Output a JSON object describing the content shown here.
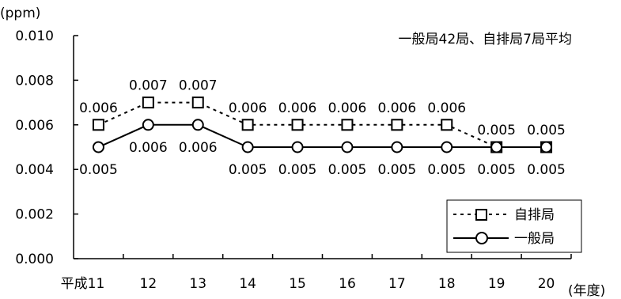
{
  "chart_data": {
    "type": "line",
    "unit_label": "(ppm)",
    "annotation": "一般局42局、自排局7局平均",
    "x_unit_label": "(年度)",
    "categories": [
      "平成11",
      "12",
      "13",
      "14",
      "15",
      "16",
      "17",
      "18",
      "19",
      "20"
    ],
    "ylim": [
      0,
      0.01
    ],
    "yticks": [
      "0.000",
      "0.002",
      "0.004",
      "0.006",
      "0.008",
      "0.010"
    ],
    "ytick_values": [
      0,
      0.002,
      0.004,
      0.006,
      0.008,
      0.01
    ],
    "legend_position": "bottom-right",
    "series": [
      {
        "name": "自排局",
        "marker": "square",
        "line_style": "dotted",
        "values": [
          0.006,
          0.007,
          0.007,
          0.006,
          0.006,
          0.006,
          0.006,
          0.006,
          0.005,
          0.005
        ],
        "labels": [
          "0.006",
          "0.007",
          "0.007",
          "0.006",
          "0.006",
          "0.006",
          "0.006",
          "0.006",
          "0.005",
          "0.005"
        ]
      },
      {
        "name": "一般局",
        "marker": "circle",
        "line_style": "solid",
        "values": [
          0.005,
          0.006,
          0.006,
          0.005,
          0.005,
          0.005,
          0.005,
          0.005,
          0.005,
          0.005
        ],
        "labels": [
          "0.005",
          "0.006",
          "0.006",
          "0.005",
          "0.005",
          "0.005",
          "0.005",
          "0.005",
          "0.005",
          "0.005"
        ]
      }
    ]
  }
}
